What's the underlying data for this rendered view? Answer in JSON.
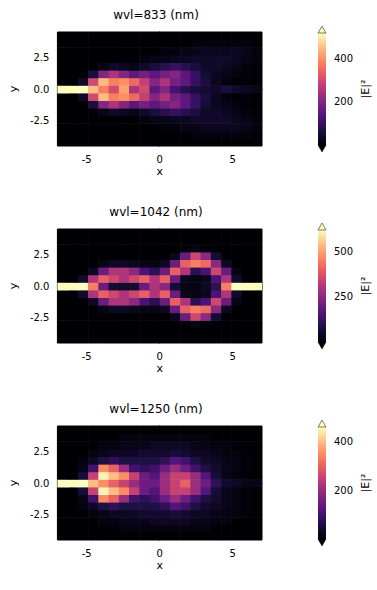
{
  "chart_data": [
    {
      "type": "heatmap",
      "title": "wvl=833 (nm)",
      "xlabel": "x",
      "ylabel": "y",
      "x": [
        -6.65,
        -5.95,
        -5.25,
        -4.55,
        -3.85,
        -3.15,
        -2.45,
        -1.75,
        -1.05,
        -0.35,
        0.35,
        1.05,
        1.75,
        2.45,
        3.15,
        3.85,
        4.55,
        5.25,
        5.95,
        6.65
      ],
      "y": [
        -4.2,
        -3.6,
        -3.0,
        -2.4,
        -1.8,
        -1.2,
        -0.6,
        0,
        0.6,
        1.2,
        1.8,
        2.4,
        3.0,
        3.6,
        4.2
      ],
      "z": [
        [
          0,
          0,
          0,
          0,
          0,
          0,
          0,
          0,
          0,
          0,
          0,
          0,
          0,
          0,
          0,
          0,
          0,
          0,
          0,
          0
        ],
        [
          0,
          0,
          0,
          0,
          0,
          0,
          0,
          0,
          0,
          0,
          0,
          0,
          0,
          10,
          10,
          10,
          10,
          10,
          10,
          0
        ],
        [
          0,
          0,
          0,
          0,
          0,
          0,
          0,
          0,
          0,
          0,
          10,
          10,
          20,
          20,
          30,
          30,
          30,
          30,
          20,
          10
        ],
        [
          0,
          0,
          0,
          0,
          0,
          0,
          0,
          0,
          10,
          20,
          20,
          30,
          30,
          40,
          40,
          40,
          40,
          30,
          20,
          10
        ],
        [
          0,
          0,
          0,
          0,
          20,
          40,
          30,
          20,
          40,
          60,
          80,
          100,
          80,
          60,
          40,
          40,
          30,
          20,
          10,
          5
        ],
        [
          0,
          0,
          0,
          60,
          200,
          250,
          200,
          150,
          180,
          150,
          180,
          200,
          150,
          100,
          50,
          30,
          20,
          10,
          5,
          0
        ],
        [
          0,
          0,
          40,
          300,
          450,
          380,
          400,
          350,
          280,
          200,
          250,
          180,
          150,
          100,
          60,
          30,
          10,
          5,
          5,
          0
        ],
        [
          520,
          520,
          520,
          450,
          380,
          300,
          420,
          250,
          300,
          150,
          200,
          120,
          80,
          60,
          50,
          40,
          60,
          40,
          30,
          20
        ],
        [
          0,
          0,
          40,
          300,
          450,
          380,
          400,
          350,
          280,
          200,
          250,
          180,
          150,
          100,
          60,
          30,
          10,
          5,
          5,
          0
        ],
        [
          0,
          0,
          0,
          60,
          200,
          250,
          200,
          150,
          180,
          150,
          180,
          200,
          150,
          100,
          50,
          30,
          20,
          10,
          5,
          0
        ],
        [
          0,
          0,
          0,
          0,
          20,
          40,
          30,
          20,
          40,
          60,
          80,
          100,
          80,
          60,
          40,
          40,
          30,
          20,
          10,
          5
        ],
        [
          0,
          0,
          0,
          0,
          0,
          0,
          0,
          0,
          10,
          20,
          20,
          30,
          30,
          40,
          40,
          40,
          40,
          30,
          20,
          10
        ],
        [
          0,
          0,
          0,
          0,
          0,
          0,
          0,
          0,
          0,
          0,
          10,
          10,
          20,
          20,
          30,
          30,
          30,
          30,
          20,
          10
        ],
        [
          0,
          0,
          0,
          0,
          0,
          0,
          0,
          0,
          0,
          0,
          0,
          0,
          0,
          10,
          10,
          10,
          10,
          10,
          10,
          0
        ],
        [
          0,
          0,
          0,
          0,
          0,
          0,
          0,
          0,
          0,
          0,
          0,
          0,
          0,
          0,
          0,
          0,
          0,
          0,
          0,
          0
        ]
      ],
      "xlim": [
        -7,
        7
      ],
      "ylim": [
        -4.5,
        4.5
      ],
      "xticks": [
        -5,
        0,
        5
      ],
      "yticks": [
        -2.5,
        {
          "value": 0,
          "label": "0.0"
        },
        2.5
      ],
      "colorbar": {
        "range": [
          0,
          520
        ],
        "ticks": [
          200,
          400
        ],
        "label": "|E|²"
      }
    },
    {
      "type": "heatmap",
      "title": "wvl=1042 (nm)",
      "xlabel": "x",
      "ylabel": "y",
      "x": [
        -6.65,
        -5.95,
        -5.25,
        -4.55,
        -3.85,
        -3.15,
        -2.45,
        -1.75,
        -1.05,
        -0.35,
        0.35,
        1.05,
        1.75,
        2.45,
        3.15,
        3.85,
        4.55,
        5.25,
        5.95,
        6.65
      ],
      "y": [
        -4.2,
        -3.6,
        -3.0,
        -2.4,
        -1.8,
        -1.2,
        -0.6,
        0,
        0.6,
        1.2,
        1.8,
        2.4,
        3.0,
        3.6,
        4.2
      ],
      "z": [
        [
          0,
          0,
          0,
          0,
          0,
          0,
          0,
          0,
          0,
          0,
          0,
          0,
          0,
          0,
          0,
          0,
          0,
          0,
          0,
          0
        ],
        [
          0,
          0,
          0,
          0,
          0,
          0,
          0,
          0,
          0,
          0,
          0,
          0,
          0,
          0,
          0,
          0,
          0,
          0,
          0,
          0
        ],
        [
          0,
          0,
          0,
          0,
          0,
          0,
          0,
          0,
          0,
          0,
          0,
          0,
          10,
          20,
          10,
          0,
          0,
          0,
          0,
          0
        ],
        [
          0,
          0,
          0,
          0,
          0,
          0,
          0,
          0,
          0,
          0,
          0,
          30,
          200,
          350,
          250,
          60,
          0,
          0,
          0,
          0
        ],
        [
          0,
          0,
          0,
          0,
          20,
          40,
          40,
          30,
          20,
          20,
          40,
          200,
          400,
          450,
          420,
          250,
          40,
          0,
          0,
          0
        ],
        [
          0,
          0,
          0,
          40,
          200,
          300,
          300,
          250,
          150,
          100,
          200,
          400,
          300,
          100,
          150,
          350,
          200,
          20,
          0,
          0
        ],
        [
          0,
          0,
          50,
          300,
          400,
          350,
          300,
          350,
          400,
          300,
          400,
          200,
          30,
          20,
          30,
          150,
          300,
          50,
          0,
          0
        ],
        [
          620,
          620,
          620,
          450,
          200,
          60,
          50,
          60,
          200,
          300,
          250,
          60,
          20,
          20,
          40,
          100,
          450,
          620,
          620,
          620
        ],
        [
          0,
          0,
          50,
          300,
          400,
          350,
          300,
          350,
          400,
          300,
          400,
          200,
          30,
          20,
          30,
          150,
          300,
          50,
          0,
          0
        ],
        [
          0,
          0,
          0,
          40,
          200,
          300,
          300,
          250,
          150,
          100,
          200,
          400,
          300,
          100,
          150,
          350,
          200,
          20,
          0,
          0
        ],
        [
          0,
          0,
          0,
          0,
          20,
          40,
          40,
          30,
          20,
          20,
          40,
          200,
          400,
          450,
          420,
          250,
          40,
          0,
          0,
          0
        ],
        [
          0,
          0,
          0,
          0,
          0,
          0,
          0,
          0,
          0,
          0,
          0,
          30,
          200,
          350,
          250,
          60,
          0,
          0,
          0,
          0
        ],
        [
          0,
          0,
          0,
          0,
          0,
          0,
          0,
          0,
          0,
          0,
          0,
          0,
          10,
          20,
          10,
          0,
          0,
          0,
          0,
          0
        ],
        [
          0,
          0,
          0,
          0,
          0,
          0,
          0,
          0,
          0,
          0,
          0,
          0,
          0,
          0,
          0,
          0,
          0,
          0,
          0,
          0
        ],
        [
          0,
          0,
          0,
          0,
          0,
          0,
          0,
          0,
          0,
          0,
          0,
          0,
          0,
          0,
          0,
          0,
          0,
          0,
          0,
          0
        ]
      ],
      "xlim": [
        -7,
        7
      ],
      "ylim": [
        -4.5,
        4.5
      ],
      "xticks": [
        -5,
        0,
        5
      ],
      "yticks": [
        -2.5,
        {
          "value": 0,
          "label": "0.0"
        },
        2.5
      ],
      "colorbar": {
        "range": [
          0,
          620
        ],
        "ticks": [
          250,
          500
        ],
        "label": "|E|²"
      }
    },
    {
      "type": "heatmap",
      "title": "wvl=1250 (nm)",
      "xlabel": "x",
      "ylabel": "y",
      "x": [
        -6.65,
        -5.95,
        -5.25,
        -4.55,
        -3.85,
        -3.15,
        -2.45,
        -1.75,
        -1.05,
        -0.35,
        0.35,
        1.05,
        1.75,
        2.45,
        3.15,
        3.85,
        4.55,
        5.25,
        5.95,
        6.65
      ],
      "y": [
        -4.2,
        -3.6,
        -3.0,
        -2.4,
        -1.8,
        -1.2,
        -0.6,
        0,
        0.6,
        1.2,
        1.8,
        2.4,
        3.0,
        3.6,
        4.2
      ],
      "z": [
        [
          0,
          0,
          0,
          0,
          0,
          0,
          0,
          0,
          0,
          0,
          0,
          0,
          0,
          0,
          0,
          0,
          0,
          0,
          0,
          0
        ],
        [
          0,
          0,
          0,
          0,
          0,
          0,
          10,
          10,
          10,
          10,
          10,
          10,
          10,
          10,
          10,
          0,
          0,
          0,
          0,
          0
        ],
        [
          0,
          0,
          0,
          0,
          10,
          10,
          20,
          20,
          20,
          30,
          30,
          30,
          30,
          20,
          20,
          10,
          10,
          0,
          0,
          0
        ],
        [
          0,
          0,
          0,
          10,
          20,
          30,
          30,
          30,
          40,
          40,
          40,
          50,
          40,
          30,
          30,
          20,
          10,
          10,
          5,
          0
        ],
        [
          0,
          0,
          10,
          30,
          60,
          80,
          60,
          60,
          60,
          60,
          80,
          120,
          100,
          60,
          40,
          30,
          20,
          10,
          5,
          0
        ],
        [
          0,
          0,
          20,
          100,
          350,
          300,
          200,
          100,
          80,
          100,
          150,
          200,
          150,
          100,
          60,
          40,
          20,
          10,
          5,
          0
        ],
        [
          0,
          0,
          50,
          250,
          450,
          400,
          350,
          250,
          150,
          120,
          200,
          250,
          250,
          200,
          120,
          50,
          20,
          10,
          5,
          0
        ],
        [
          460,
          460,
          460,
          400,
          350,
          300,
          250,
          200,
          150,
          150,
          200,
          250,
          300,
          200,
          150,
          80,
          40,
          30,
          20,
          20
        ],
        [
          0,
          0,
          50,
          250,
          450,
          400,
          350,
          250,
          150,
          120,
          200,
          250,
          250,
          200,
          120,
          50,
          20,
          10,
          5,
          0
        ],
        [
          0,
          0,
          20,
          100,
          350,
          300,
          200,
          100,
          80,
          100,
          150,
          200,
          150,
          100,
          60,
          40,
          20,
          10,
          5,
          0
        ],
        [
          0,
          0,
          10,
          30,
          60,
          80,
          60,
          60,
          60,
          60,
          80,
          120,
          100,
          60,
          40,
          30,
          20,
          10,
          5,
          0
        ],
        [
          0,
          0,
          0,
          10,
          20,
          30,
          30,
          30,
          40,
          40,
          40,
          50,
          40,
          30,
          30,
          20,
          10,
          10,
          5,
          0
        ],
        [
          0,
          0,
          0,
          0,
          10,
          10,
          20,
          20,
          20,
          30,
          30,
          30,
          30,
          20,
          20,
          10,
          10,
          0,
          0,
          0
        ],
        [
          0,
          0,
          0,
          0,
          0,
          0,
          10,
          10,
          10,
          10,
          10,
          10,
          10,
          10,
          10,
          0,
          0,
          0,
          0,
          0
        ],
        [
          0,
          0,
          0,
          0,
          0,
          0,
          0,
          0,
          0,
          0,
          0,
          0,
          0,
          0,
          0,
          0,
          0,
          0,
          0,
          0
        ]
      ],
      "xlim": [
        -7,
        7
      ],
      "ylim": [
        -4.5,
        4.5
      ],
      "xticks": [
        -5,
        0,
        5
      ],
      "yticks": [
        -2.5,
        {
          "value": 0,
          "label": "0.0"
        },
        2.5
      ],
      "colorbar": {
        "range": [
          0,
          460
        ],
        "ticks": [
          200,
          400
        ],
        "label": "|E|²"
      }
    }
  ]
}
